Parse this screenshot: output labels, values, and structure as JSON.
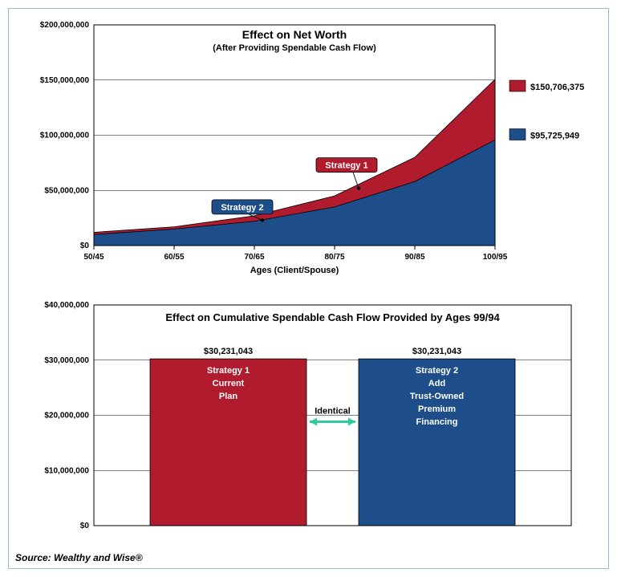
{
  "outer": {
    "border_color": "#9db8d8",
    "background": "#ffffff"
  },
  "chart1": {
    "type": "area",
    "title": "Effect on Net Worth",
    "subtitle": "(After Providing Spendable Cash Flow)",
    "title_fontsize": 14,
    "subtitle_fontsize": 11,
    "xlabel": "Ages (Client/Spouse)",
    "xlabel_fontsize": 11,
    "xticks": [
      "50/45",
      "60/55",
      "70/65",
      "80/75",
      "90/85",
      "100/95"
    ],
    "yticks": [
      "$0",
      "$50,000,000",
      "$100,000,000",
      "$150,000,000",
      "$200,000,000"
    ],
    "ylim": [
      0,
      200000000
    ],
    "tick_fontsize": 10,
    "background": "#ffffff",
    "plot_border": "#000000",
    "grid_color": "#000000",
    "series": [
      {
        "name": "Strategy 1",
        "color": "#b01c2e",
        "callout_bg": "#b01c2e",
        "callout_text_color": "#ffffff",
        "values": [
          12000000,
          17000000,
          27000000,
          45000000,
          80000000,
          150706375
        ]
      },
      {
        "name": "Strategy 2",
        "color": "#1d4e89",
        "callout_bg": "#1d4e89",
        "callout_text_color": "#ffffff",
        "values": [
          10000000,
          15000000,
          22000000,
          35000000,
          58000000,
          95725949
        ]
      }
    ],
    "legend": [
      {
        "color": "#b01c2e",
        "label": "$150,706,375"
      },
      {
        "color": "#1d4e89",
        "label": "$95,725,949"
      }
    ],
    "legend_fontsize": 11,
    "callouts": {
      "s1": {
        "label": "Strategy 1",
        "x_idx": 3.15,
        "y_val": 73000000,
        "target_x_idx": 3.3,
        "target_y_val": 52000000
      },
      "s2": {
        "label": "Strategy 2",
        "x_idx": 1.85,
        "y_val": 35000000,
        "target_x_idx": 2.1,
        "target_y_val": 23000000
      }
    }
  },
  "chart2": {
    "type": "bar",
    "title": "Effect on Cumulative Spendable Cash Flow Provided by Ages 99/94",
    "title_fontsize": 13,
    "yticks": [
      "$0",
      "$10,000,000",
      "$20,000,000",
      "$30,000,000",
      "$40,000,000"
    ],
    "ylim": [
      0,
      40000000
    ],
    "tick_fontsize": 10,
    "background": "#ffffff",
    "plot_border": "#000000",
    "grid_color": "#000000",
    "bars": [
      {
        "value": 30231043,
        "value_label": "$30,231,043",
        "lines": [
          "Strategy 1",
          "Current",
          "Plan"
        ],
        "color": "#b01c2e",
        "text_color": "#ffffff"
      },
      {
        "value": 30231043,
        "value_label": "$30,231,043",
        "lines": [
          "Strategy 2",
          "Add",
          "Trust-Owned",
          "Premium",
          "Financing"
        ],
        "color": "#1d4e89",
        "text_color": "#ffffff"
      }
    ],
    "middle_label": "Identical",
    "middle_label_fontsize": 11,
    "arrow_color": "#2ecc9a"
  },
  "source": "Source: Wealthy and Wise®"
}
